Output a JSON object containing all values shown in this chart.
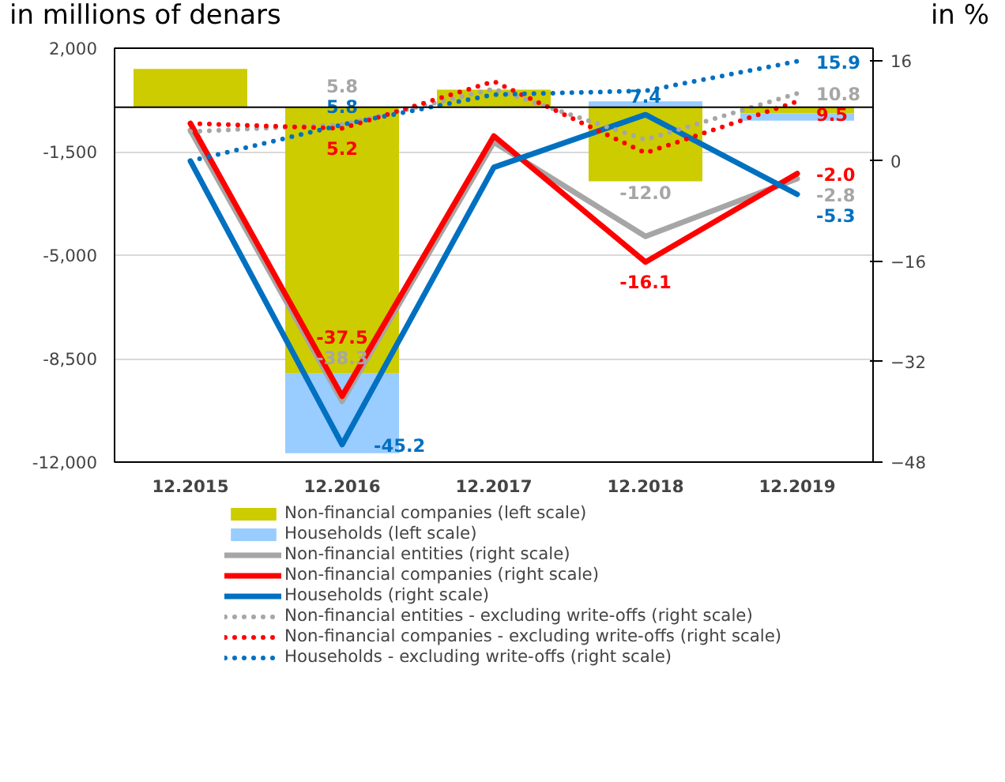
{
  "chart_data": {
    "type": "bar",
    "ylabel": "in millions of denars",
    "y2label": "in %",
    "categories": [
      "12.2015",
      "12.2016",
      "12.2017",
      "12.2018",
      "12.2019"
    ],
    "ylim": [
      -12000,
      2000
    ],
    "yticks": [
      {
        "value": 2000,
        "label": "2,000"
      },
      {
        "value": -1500,
        "label": "-1,500"
      },
      {
        "value": -5000,
        "label": "-5,000"
      },
      {
        "value": -8500,
        "label": "-8,500"
      },
      {
        "value": -12000,
        "label": "-12,000"
      }
    ],
    "y2lim": [
      -48,
      18
    ],
    "y2ticks": [
      16,
      0,
      -16,
      -32,
      -48
    ],
    "grid": "y",
    "legend": "bottom",
    "stacked": true,
    "ref_lines": [
      {
        "axis": "y",
        "value": 0,
        "color": "#000000"
      }
    ],
    "series": [
      {
        "name": "Non-financial companies (left scale)",
        "color": "#cccc00",
        "values": [
          1300,
          -9000,
          600,
          -2500,
          -200
        ]
      },
      {
        "name": "Households (left scale)",
        "color": "#99ccff",
        "values": [
          null,
          -2700,
          null,
          200,
          -250
        ]
      },
      {
        "name": "Non-financial entities (right scale)",
        "type": "line",
        "axis": "y2",
        "line_style": "solid",
        "color": "#a6a6a6",
        "values": [
          4.9,
          -38.3,
          3,
          -12.0,
          -2.8
        ],
        "value_labels": [
          null,
          "-38.3",
          null,
          "-12.0",
          "-2.8"
        ]
      },
      {
        "name": "Non-financial companies (right scale)",
        "type": "line",
        "axis": "y2",
        "line_style": "solid",
        "color": "#ff0000",
        "values": [
          6.0,
          -37.5,
          4,
          -16.1,
          -2.0
        ],
        "value_labels": [
          null,
          "-37.5",
          null,
          "-16.1",
          "-2.0"
        ]
      },
      {
        "name": "Households (right scale)",
        "type": "line",
        "axis": "y2",
        "line_style": "solid",
        "color": "#0070c0",
        "values": [
          0,
          -45.2,
          -1,
          7.4,
          -5.3
        ],
        "value_labels": [
          null,
          "-45.2",
          null,
          "7.4",
          "-5.3"
        ]
      },
      {
        "name": "Non-financial entities - excluding write-offs (right scale)",
        "type": "line",
        "axis": "y2",
        "line_style": "dotted",
        "color": "#a6a6a6",
        "values": [
          4.7,
          5.8,
          11.5,
          3.4,
          10.8
        ],
        "value_labels": [
          null,
          "5.8",
          null,
          null,
          "10.8"
        ]
      },
      {
        "name": "Non-financial companies - excluding write-offs (right scale)",
        "type": "line",
        "axis": "y2",
        "line_style": "dotted",
        "color": "#ff0000",
        "values": [
          6.0,
          5.2,
          12.7,
          1.3,
          9.5
        ],
        "value_labels": [
          null,
          "5.2",
          null,
          null,
          "9.5"
        ]
      },
      {
        "name": "Households - excluding write-offs (right scale)",
        "type": "line",
        "axis": "y2",
        "line_style": "dotted",
        "color": "#0070c0",
        "values": [
          0,
          5.8,
          10.6,
          11.2,
          15.9
        ],
        "value_labels": [
          null,
          "5.8",
          null,
          null,
          "15.9"
        ]
      }
    ]
  }
}
